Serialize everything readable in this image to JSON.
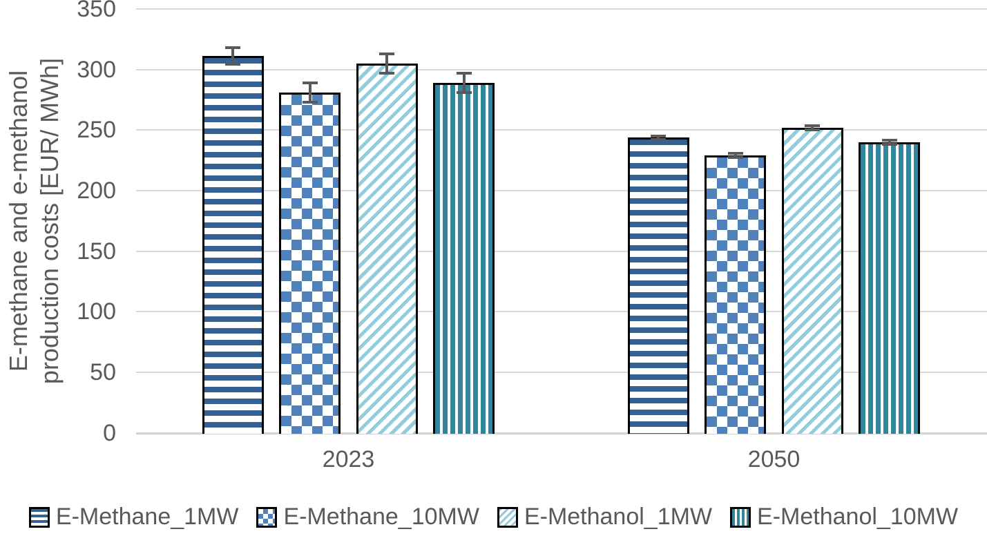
{
  "chart_data": {
    "type": "bar",
    "title": "",
    "categories": [
      "2023",
      "2050"
    ],
    "series": [
      {
        "name": "E-Methane_1MW",
        "pattern": "horizontal-stripes",
        "color": "#366092",
        "values": [
          311,
          244
        ],
        "errors": [
          8,
          2
        ]
      },
      {
        "name": "E-Methane_10MW",
        "pattern": "checker",
        "color": "#4F81BD",
        "values": [
          281,
          229
        ],
        "errors": [
          9,
          3
        ]
      },
      {
        "name": "E-Methanol_1MW",
        "pattern": "diagonal-stripes",
        "color": "#92CDDC",
        "values": [
          305,
          252
        ],
        "errors": [
          9,
          3
        ]
      },
      {
        "name": "E-Methanol_10MW",
        "pattern": "vertical-stripes",
        "color": "#31859C",
        "values": [
          289,
          240
        ],
        "errors": [
          9,
          3
        ]
      }
    ],
    "xlabel": "",
    "ylabel_lines": [
      "E-methane and e-methanol",
      "production costs  [EUR/ MWh]"
    ],
    "yticks": [
      0,
      50,
      100,
      150,
      200,
      250,
      300,
      350
    ],
    "ylim": [
      0,
      350
    ],
    "grid": "horizontal",
    "gridline_color": "#D9D9D9",
    "error_bar_color": "#595959",
    "bar_border_color": "#000000",
    "text_color": "#595959",
    "legend_position": "bottom"
  }
}
